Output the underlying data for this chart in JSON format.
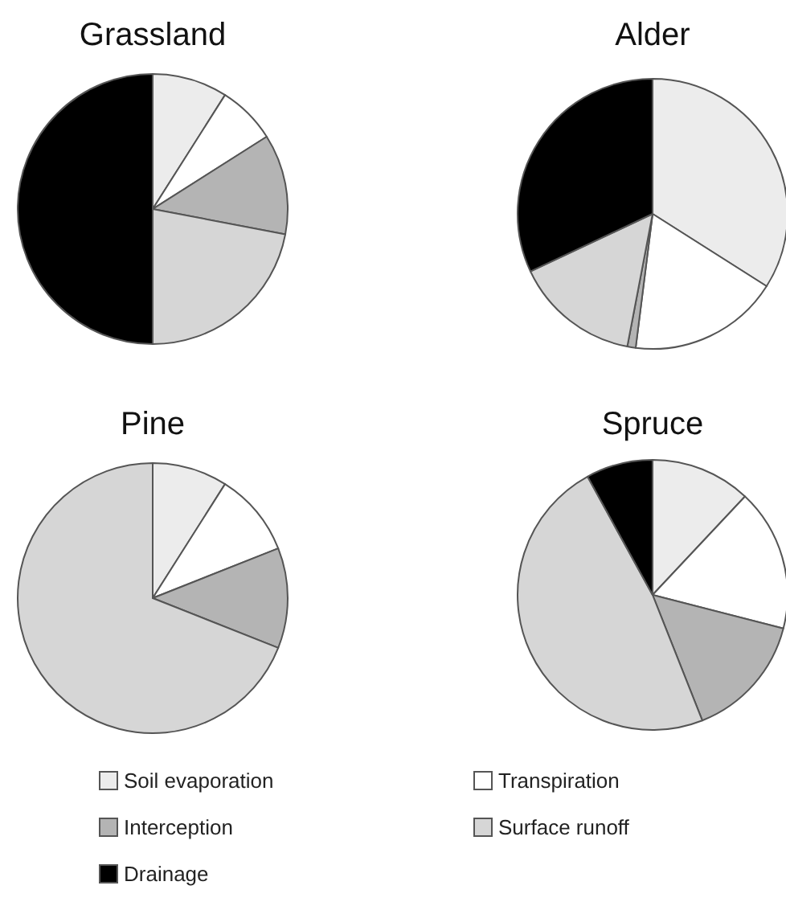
{
  "chart_data": {
    "type": "pie",
    "categories": [
      "Soil evaporation",
      "Transpiration",
      "Interception",
      "Surface runoff",
      "Drainage"
    ],
    "colors": [
      "#ececec",
      "#ffffff",
      "#b4b4b4",
      "#d6d6d6",
      "#000000"
    ],
    "legend": "bottom",
    "series": [
      {
        "name": "Grassland",
        "values": [
          9,
          7,
          12,
          22,
          50
        ]
      },
      {
        "name": "Alder",
        "values": [
          34,
          18,
          1,
          15,
          32
        ]
      },
      {
        "name": "Pine",
        "values": [
          9,
          10,
          12,
          69,
          0
        ]
      },
      {
        "name": "Spruce",
        "values": [
          12,
          17,
          15,
          48,
          8
        ]
      }
    ]
  }
}
